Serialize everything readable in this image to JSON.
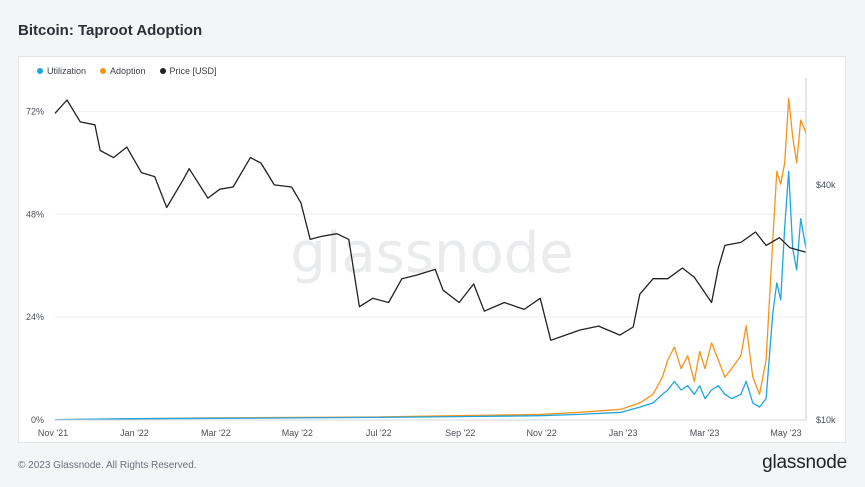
{
  "header": {
    "title": "Bitcoin: Taproot Adoption"
  },
  "footer": {
    "copyright": "© 2023 Glassnode. All Rights Reserved.",
    "brand": "glassnode"
  },
  "watermark": "glassnode",
  "colors": {
    "utilization": "#1ea6e0",
    "adoption": "#f7931a",
    "price": "#222222"
  },
  "chart_data": {
    "type": "line",
    "title": "Bitcoin: Taproot Adoption",
    "legend": {
      "placement": "top-left"
    },
    "grid": true,
    "x_labels": [
      "Nov '21",
      "Jan '22",
      "Mar '22",
      "May '22",
      "Jul '22",
      "Sep '22",
      "Nov '22",
      "Jan '23",
      "Mar '23",
      "May '23"
    ],
    "x_range": [
      "2021-11-01",
      "2023-05-20"
    ],
    "y_left": {
      "ticks": [
        "0%",
        "24%",
        "48%",
        "72%"
      ],
      "range": [
        0,
        77
      ]
    },
    "y_right": {
      "ticks": [
        "$10k",
        "$40k"
      ],
      "scale": "log",
      "range": [
        10000,
        70000
      ]
    },
    "series": [
      {
        "name": "Utilization",
        "axis": "left",
        "points": [
          [
            "2021-11-01",
            0.1
          ],
          [
            "2022-01-01",
            0.3
          ],
          [
            "2022-03-01",
            0.4
          ],
          [
            "2022-05-01",
            0.5
          ],
          [
            "2022-07-01",
            0.6
          ],
          [
            "2022-09-01",
            0.8
          ],
          [
            "2022-11-01",
            1.0
          ],
          [
            "2022-12-01",
            1.3
          ],
          [
            "2023-01-01",
            1.8
          ],
          [
            "2023-01-15",
            3
          ],
          [
            "2023-01-25",
            4
          ],
          [
            "2023-02-01",
            6
          ],
          [
            "2023-02-05",
            7
          ],
          [
            "2023-02-10",
            9
          ],
          [
            "2023-02-15",
            7
          ],
          [
            "2023-02-20",
            8
          ],
          [
            "2023-02-25",
            6
          ],
          [
            "2023-03-01",
            8
          ],
          [
            "2023-03-05",
            5
          ],
          [
            "2023-03-10",
            7
          ],
          [
            "2023-03-15",
            8
          ],
          [
            "2023-03-20",
            6
          ],
          [
            "2023-03-25",
            5
          ],
          [
            "2023-04-01",
            6
          ],
          [
            "2023-04-05",
            9
          ],
          [
            "2023-04-10",
            4
          ],
          [
            "2023-04-15",
            3
          ],
          [
            "2023-04-20",
            5
          ],
          [
            "2023-04-25",
            25
          ],
          [
            "2023-04-28",
            32
          ],
          [
            "2023-05-01",
            28
          ],
          [
            "2023-05-04",
            45
          ],
          [
            "2023-05-07",
            58
          ],
          [
            "2023-05-10",
            40
          ],
          [
            "2023-05-13",
            35
          ],
          [
            "2023-05-16",
            47
          ],
          [
            "2023-05-20",
            40
          ]
        ]
      },
      {
        "name": "Adoption",
        "axis": "left",
        "points": [
          [
            "2021-11-01",
            0.1
          ],
          [
            "2022-01-01",
            0.3
          ],
          [
            "2022-03-01",
            0.5
          ],
          [
            "2022-05-01",
            0.6
          ],
          [
            "2022-07-01",
            0.7
          ],
          [
            "2022-09-01",
            1.0
          ],
          [
            "2022-11-01",
            1.3
          ],
          [
            "2022-12-01",
            1.8
          ],
          [
            "2023-01-01",
            2.5
          ],
          [
            "2023-01-15",
            4
          ],
          [
            "2023-01-25",
            6
          ],
          [
            "2023-02-01",
            10
          ],
          [
            "2023-02-05",
            14
          ],
          [
            "2023-02-10",
            17
          ],
          [
            "2023-02-15",
            12
          ],
          [
            "2023-02-20",
            15
          ],
          [
            "2023-02-25",
            9
          ],
          [
            "2023-03-01",
            16
          ],
          [
            "2023-03-05",
            12
          ],
          [
            "2023-03-10",
            18
          ],
          [
            "2023-03-15",
            14
          ],
          [
            "2023-03-20",
            10
          ],
          [
            "2023-03-25",
            12
          ],
          [
            "2023-04-01",
            15
          ],
          [
            "2023-04-05",
            22
          ],
          [
            "2023-04-10",
            10
          ],
          [
            "2023-04-15",
            6
          ],
          [
            "2023-04-20",
            14
          ],
          [
            "2023-04-25",
            42
          ],
          [
            "2023-04-28",
            58
          ],
          [
            "2023-05-01",
            55
          ],
          [
            "2023-05-04",
            60
          ],
          [
            "2023-05-07",
            75
          ],
          [
            "2023-05-10",
            66
          ],
          [
            "2023-05-13",
            60
          ],
          [
            "2023-05-16",
            70
          ],
          [
            "2023-05-20",
            67
          ]
        ]
      },
      {
        "name": "Price [USD]",
        "axis": "right",
        "points": [
          [
            "2021-11-01",
            61000
          ],
          [
            "2021-11-10",
            66000
          ],
          [
            "2021-11-20",
            58000
          ],
          [
            "2021-12-01",
            57000
          ],
          [
            "2021-12-05",
            49000
          ],
          [
            "2021-12-15",
            47000
          ],
          [
            "2021-12-25",
            50000
          ],
          [
            "2022-01-05",
            43000
          ],
          [
            "2022-01-15",
            42000
          ],
          [
            "2022-01-24",
            35000
          ],
          [
            "2022-02-05",
            41000
          ],
          [
            "2022-02-10",
            44000
          ],
          [
            "2022-02-24",
            37000
          ],
          [
            "2022-03-05",
            39000
          ],
          [
            "2022-03-15",
            39500
          ],
          [
            "2022-03-28",
            47000
          ],
          [
            "2022-04-05",
            45500
          ],
          [
            "2022-04-15",
            40000
          ],
          [
            "2022-04-28",
            39500
          ],
          [
            "2022-05-05",
            36000
          ],
          [
            "2022-05-12",
            29000
          ],
          [
            "2022-05-20",
            29500
          ],
          [
            "2022-06-01",
            30000
          ],
          [
            "2022-06-10",
            29000
          ],
          [
            "2022-06-18",
            19500
          ],
          [
            "2022-06-28",
            20500
          ],
          [
            "2022-07-10",
            20000
          ],
          [
            "2022-07-20",
            23000
          ],
          [
            "2022-07-31",
            23500
          ],
          [
            "2022-08-14",
            24300
          ],
          [
            "2022-08-20",
            21500
          ],
          [
            "2022-09-01",
            20000
          ],
          [
            "2022-09-12",
            22300
          ],
          [
            "2022-09-20",
            19000
          ],
          [
            "2022-10-05",
            20000
          ],
          [
            "2022-10-20",
            19200
          ],
          [
            "2022-11-01",
            20500
          ],
          [
            "2022-11-09",
            16000
          ],
          [
            "2022-11-20",
            16500
          ],
          [
            "2022-12-01",
            17000
          ],
          [
            "2022-12-15",
            17400
          ],
          [
            "2022-12-31",
            16500
          ],
          [
            "2023-01-10",
            17300
          ],
          [
            "2023-01-15",
            21000
          ],
          [
            "2023-01-25",
            23000
          ],
          [
            "2023-02-05",
            23000
          ],
          [
            "2023-02-16",
            24500
          ],
          [
            "2023-02-25",
            23200
          ],
          [
            "2023-03-10",
            20000
          ],
          [
            "2023-03-15",
            24500
          ],
          [
            "2023-03-20",
            28000
          ],
          [
            "2023-04-01",
            28500
          ],
          [
            "2023-04-12",
            30300
          ],
          [
            "2023-04-20",
            28000
          ],
          [
            "2023-04-30",
            29300
          ],
          [
            "2023-05-08",
            27600
          ],
          [
            "2023-05-20",
            26900
          ]
        ]
      }
    ]
  }
}
